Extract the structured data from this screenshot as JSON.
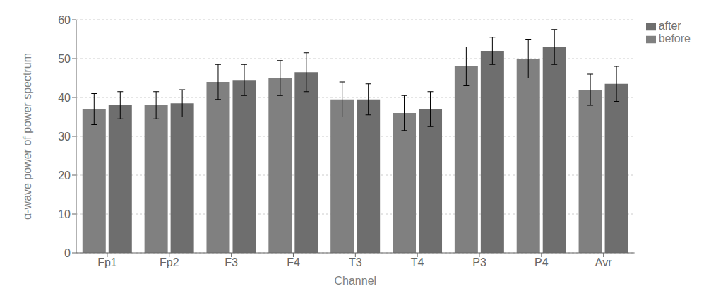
{
  "chart_data": {
    "type": "bar",
    "categories": [
      "Fp1",
      "Fp2",
      "F3",
      "F4",
      "T3",
      "T4",
      "P3",
      "P4",
      "Avr"
    ],
    "series": [
      {
        "name": "before",
        "color": "#808080",
        "values": [
          37.0,
          38.0,
          44.0,
          45.0,
          39.5,
          36.0,
          48.0,
          50.0,
          42.0
        ],
        "errors": [
          4.0,
          3.5,
          4.5,
          4.5,
          4.5,
          4.5,
          5.0,
          5.0,
          4.0
        ]
      },
      {
        "name": "after",
        "color": "#6e6e6e",
        "values": [
          38.0,
          38.5,
          44.5,
          46.5,
          39.5,
          37.0,
          52.0,
          53.0,
          43.5
        ],
        "errors": [
          3.5,
          3.5,
          4.0,
          5.0,
          4.0,
          4.5,
          3.5,
          4.5,
          4.5
        ]
      }
    ],
    "xlabel": "Channel",
    "ylabel": "α-wave power of power spectrum",
    "ylim": [
      0,
      60
    ],
    "yticks": [
      0,
      10,
      20,
      30,
      40,
      50,
      60
    ],
    "grid": true,
    "legend": "upper right"
  }
}
